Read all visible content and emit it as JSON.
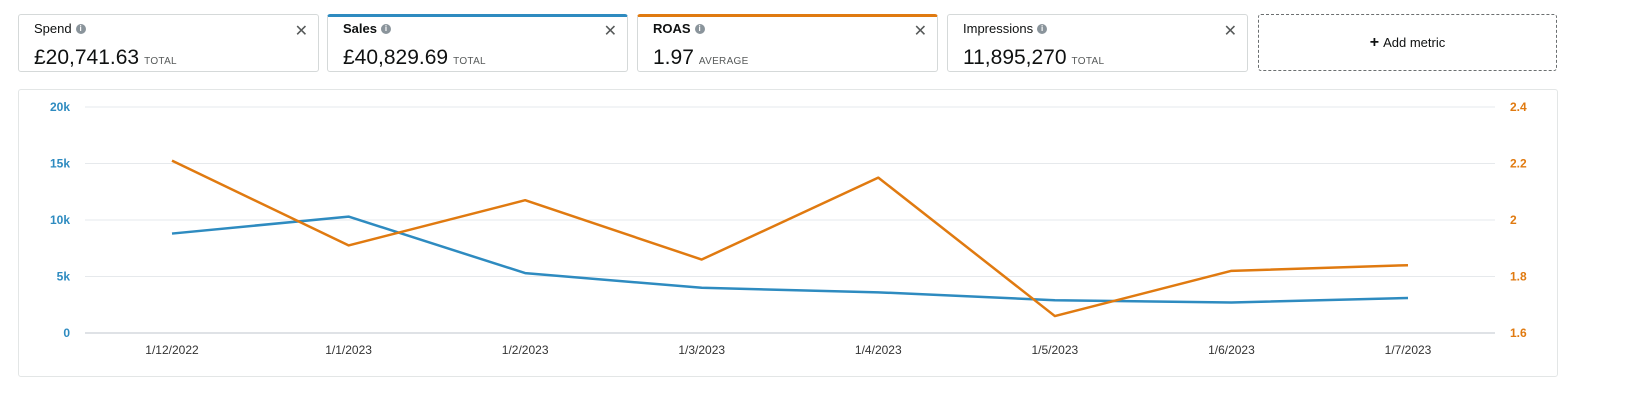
{
  "metrics": [
    {
      "name": "Spend",
      "value": "£20,741.63",
      "agg": "TOTAL",
      "accent": ""
    },
    {
      "name": "Sales",
      "value": "£40,829.69",
      "agg": "TOTAL",
      "accent": "#2e8bc0"
    },
    {
      "name": "ROAS",
      "value": "1.97",
      "agg": "AVERAGE",
      "accent": "#e07a10"
    },
    {
      "name": "Impressions",
      "value": "11,895,270",
      "agg": "TOTAL",
      "accent": ""
    }
  ],
  "add_metric_label": "Add metric",
  "close_glyph": "✕",
  "info_glyph": "i",
  "chart_data": {
    "type": "line",
    "x": [
      "1/12/2022",
      "1/1/2023",
      "1/2/2023",
      "1/3/2023",
      "1/4/2023",
      "1/5/2023",
      "1/6/2023",
      "1/7/2023"
    ],
    "series": [
      {
        "name": "Sales",
        "axis": "left",
        "color": "#2e8bc0",
        "values": [
          8800,
          10300,
          5300,
          4000,
          3600,
          2900,
          2700,
          3100
        ]
      },
      {
        "name": "ROAS",
        "axis": "right",
        "color": "#e07a10",
        "values": [
          2.21,
          1.91,
          2.07,
          1.86,
          2.15,
          1.66,
          1.82,
          1.84
        ]
      }
    ],
    "y_left": {
      "range": [
        0,
        20000
      ],
      "ticks": [
        "0",
        "5k",
        "10k",
        "15k",
        "20k"
      ],
      "color": "#2e8bc0"
    },
    "y_right": {
      "range": [
        1.6,
        2.4
      ],
      "ticks": [
        "1.6",
        "1.8",
        "2",
        "2.2",
        "2.4"
      ],
      "color": "#e07a10"
    },
    "grid": true,
    "title": "",
    "xlabel": "",
    "ylabel": ""
  }
}
